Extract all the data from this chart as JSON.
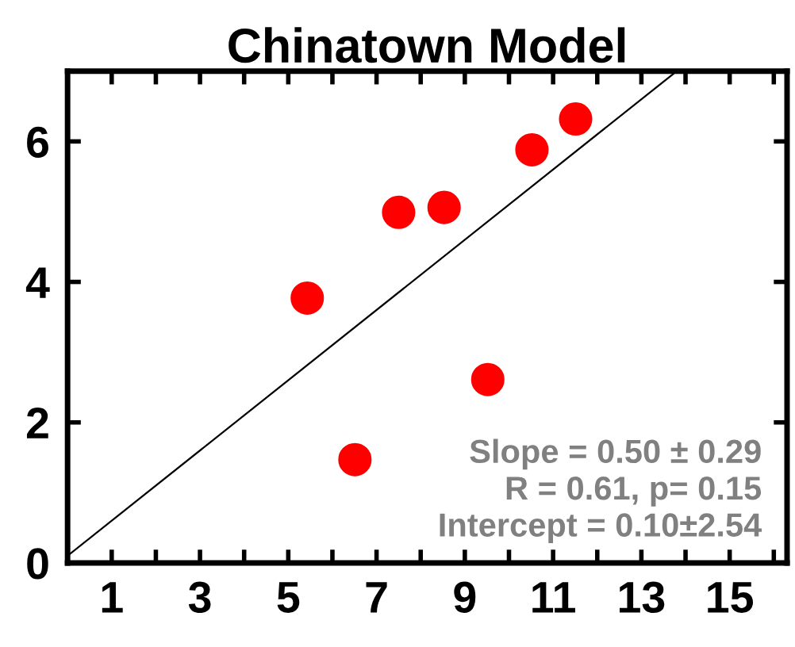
{
  "chart_data": {
    "type": "scatter",
    "title": "Chinatown Model",
    "series": [
      {
        "marker": "circle",
        "color": "#ff0000",
        "x": [
          5.43,
          6.51,
          7.5,
          8.53,
          9.52,
          10.52,
          11.51
        ],
        "values": [
          3.77,
          1.47,
          4.99,
          5.06,
          2.61,
          5.88,
          6.32
        ]
      },
      {
        "type": "line",
        "color": "#000000",
        "x": [
          0,
          13.8
        ],
        "values": [
          0.1,
          7.0
        ]
      }
    ],
    "xlim": [
      0,
      16.3
    ],
    "ylim": [
      0,
      7
    ],
    "xticks": [
      1,
      {
        "value": 2,
        "label": null
      },
      3,
      {
        "value": 4,
        "label": null
      },
      5,
      {
        "value": 6,
        "label": null
      },
      7,
      {
        "value": 8,
        "label": null
      },
      9,
      {
        "value": 10,
        "label": null
      },
      11,
      {
        "value": 12,
        "label": null
      },
      13,
      {
        "value": 14,
        "label": null
      },
      15,
      {
        "value": 16,
        "label": null
      }
    ],
    "yticks": [
      0,
      2,
      4,
      6
    ],
    "annotations": [
      "Slope = 0.50 ± 0.29",
      "R = 0.61, p= 0.15",
      "Intercept = 0.10±2.54"
    ],
    "grid": false,
    "legend": false
  }
}
